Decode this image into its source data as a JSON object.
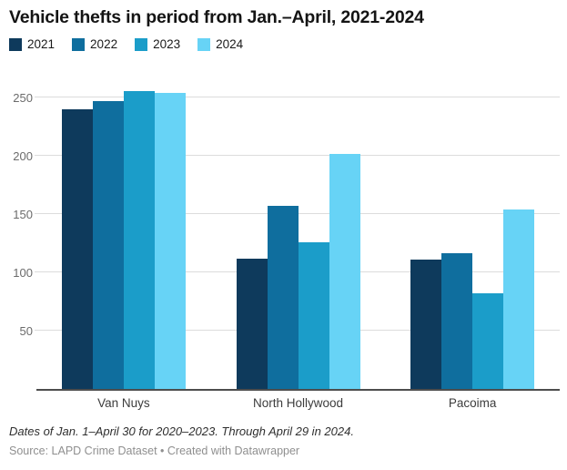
{
  "title": "Vehicle thefts in period from Jan.–April, 2021-2024",
  "chart_data": {
    "type": "bar",
    "categories": [
      "Van Nuys",
      "North Hollywood",
      "Pacoima"
    ],
    "series": [
      {
        "name": "2021",
        "color": "#0e3a5c",
        "values": [
          240,
          112,
          111
        ]
      },
      {
        "name": "2022",
        "color": "#0f6e9e",
        "values": [
          247,
          157,
          117
        ]
      },
      {
        "name": "2023",
        "color": "#1b9dc9",
        "values": [
          256,
          126,
          82
        ]
      },
      {
        "name": "2024",
        "color": "#67d3f6",
        "values": [
          254,
          202,
          154
        ]
      }
    ],
    "title": "Vehicle thefts in period from Jan.–April, 2021-2024",
    "xlabel": "",
    "ylabel": "",
    "ylim": [
      0,
      260
    ],
    "yticks": [
      50,
      100,
      150,
      200,
      250
    ],
    "grid": true,
    "legend_position": "top-left",
    "axis_color": "#4d4d4d",
    "gridline_color": "#dcdcdc"
  },
  "footer": {
    "note": "Dates of Jan. 1–April 30 for 2020–2023. Through April 29 in 2024.",
    "source": "Source: LAPD Crime Dataset • Created with Datawrapper"
  }
}
